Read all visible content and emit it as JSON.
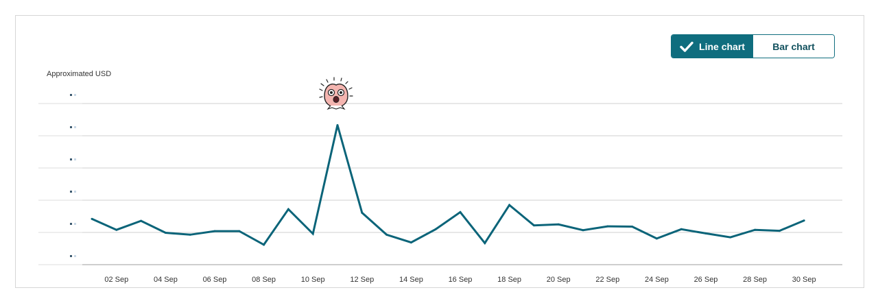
{
  "toggle": {
    "line_label": "Line chart",
    "bar_label": "Bar chart",
    "active": "line"
  },
  "icons": {
    "check": "check-icon",
    "mascot": "peach-mascot-icon"
  },
  "colors": {
    "accent": "#0f6d7e",
    "line": "#0b6479",
    "grid": "#cfcfcf"
  },
  "chart_data": {
    "type": "line",
    "title": "",
    "xlabel": "",
    "ylabel": "Approximated USD",
    "grid": true,
    "legend": "none",
    "x_tick_labels": [
      "02 Sep",
      "04 Sep",
      "06 Sep",
      "08 Sep",
      "10 Sep",
      "12 Sep",
      "14 Sep",
      "16 Sep",
      "18 Sep",
      "20 Sep",
      "22 Sep",
      "24 Sep",
      "26 Sep",
      "28 Sep",
      "30 Sep"
    ],
    "ylim": [
      0,
      5
    ],
    "y_ticks": [
      0,
      1,
      2,
      3,
      4,
      5
    ],
    "series": [
      {
        "name": "",
        "x": [
          "01 Sep",
          "02 Sep",
          "03 Sep",
          "04 Sep",
          "05 Sep",
          "06 Sep",
          "07 Sep",
          "08 Sep",
          "09 Sep",
          "10 Sep",
          "11 Sep",
          "12 Sep",
          "13 Sep",
          "14 Sep",
          "15 Sep",
          "16 Sep",
          "17 Sep",
          "18 Sep",
          "19 Sep",
          "20 Sep",
          "21 Sep",
          "22 Sep",
          "23 Sep",
          "24 Sep",
          "25 Sep",
          "26 Sep",
          "27 Sep",
          "28 Sep",
          "29 Sep",
          "30 Sep"
        ],
        "values": [
          1.42,
          1.08,
          1.36,
          0.99,
          0.93,
          1.04,
          1.04,
          0.62,
          1.72,
          0.96,
          4.33,
          1.61,
          0.93,
          0.69,
          1.1,
          1.63,
          0.67,
          1.85,
          1.22,
          1.25,
          1.07,
          1.19,
          1.18,
          0.81,
          1.1,
          0.97,
          0.85,
          1.08,
          1.05,
          1.37
        ]
      }
    ]
  }
}
